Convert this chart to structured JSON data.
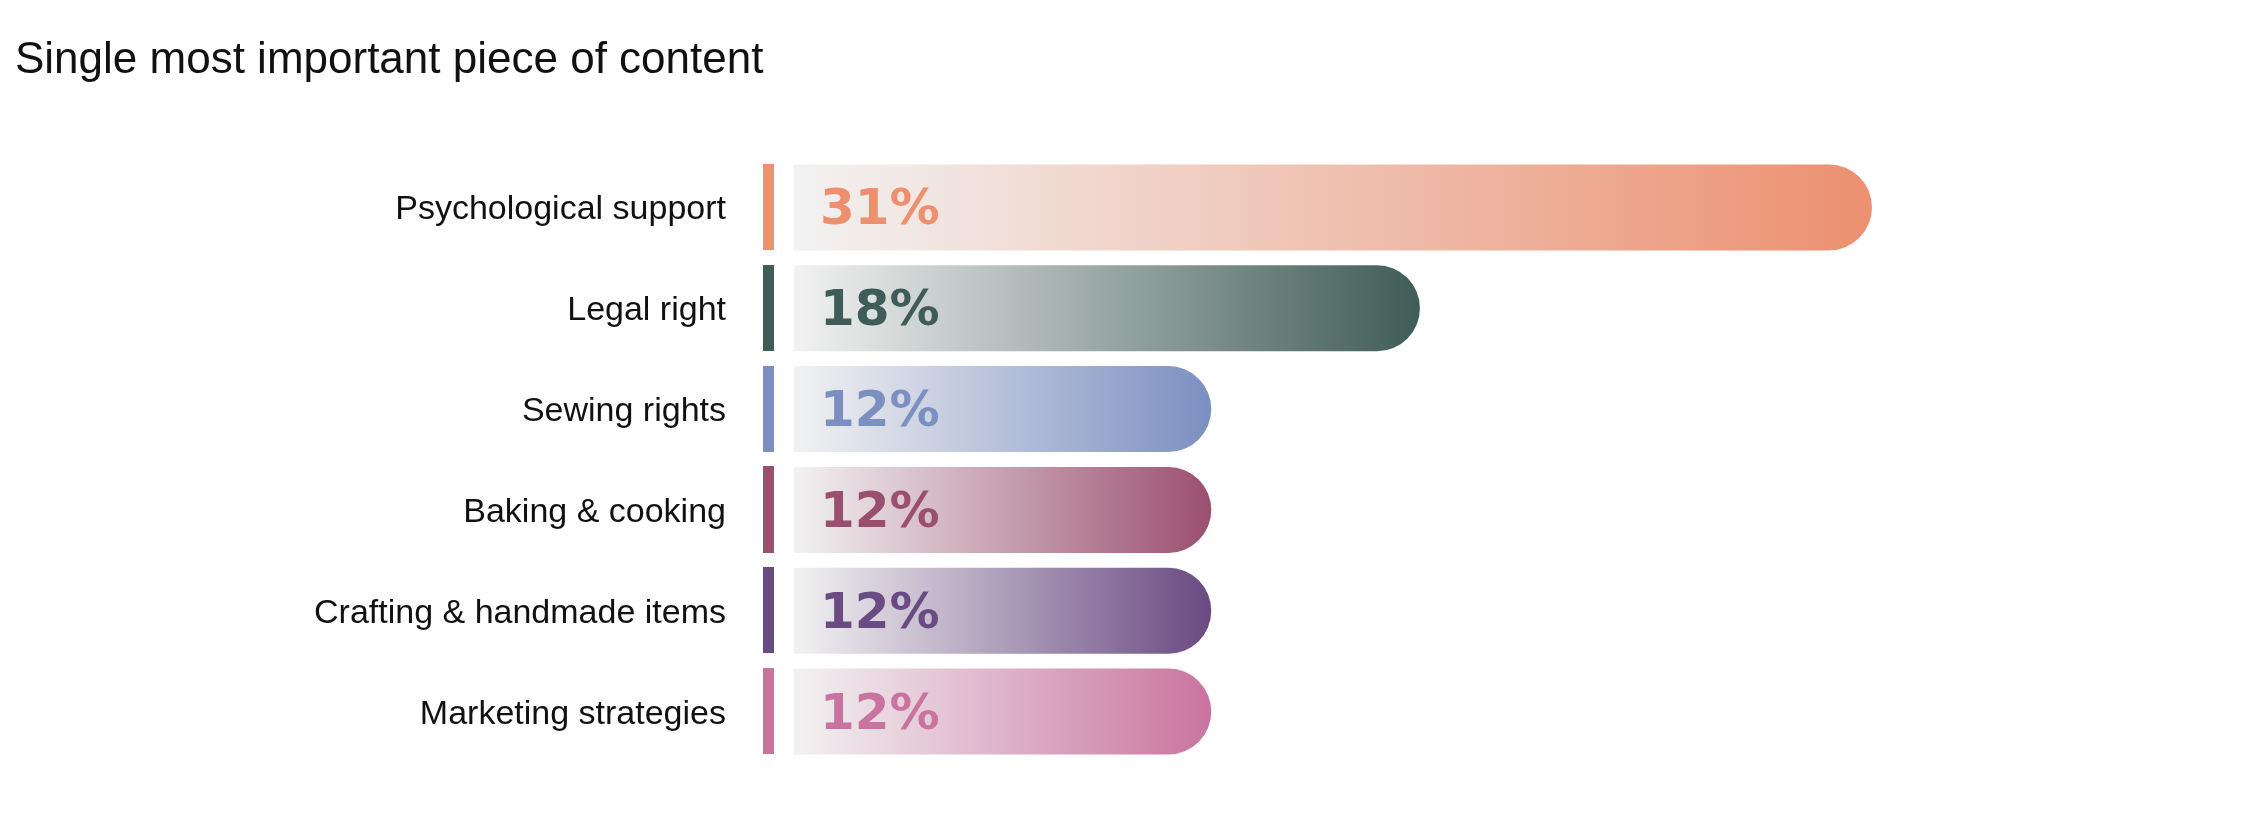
{
  "chart_data": {
    "type": "bar",
    "orientation": "horizontal",
    "title": "Single most important piece of content",
    "categories": [
      "Psychological support",
      "Legal right",
      "Sewing rights",
      "Baking & cooking",
      "Crafting & handmade items",
      "Marketing strategies"
    ],
    "values": [
      31,
      18,
      12,
      12,
      12,
      12
    ],
    "colors": [
      "#ec9070",
      "#3f5c56",
      "#7b8fc1",
      "#9b4f6f",
      "#6a4a82",
      "#c9749f"
    ],
    "value_labels": [
      "31%",
      "18%",
      "12%",
      "12%",
      "12%",
      "12%"
    ],
    "tick_labels": "y",
    "grid": false
  }
}
